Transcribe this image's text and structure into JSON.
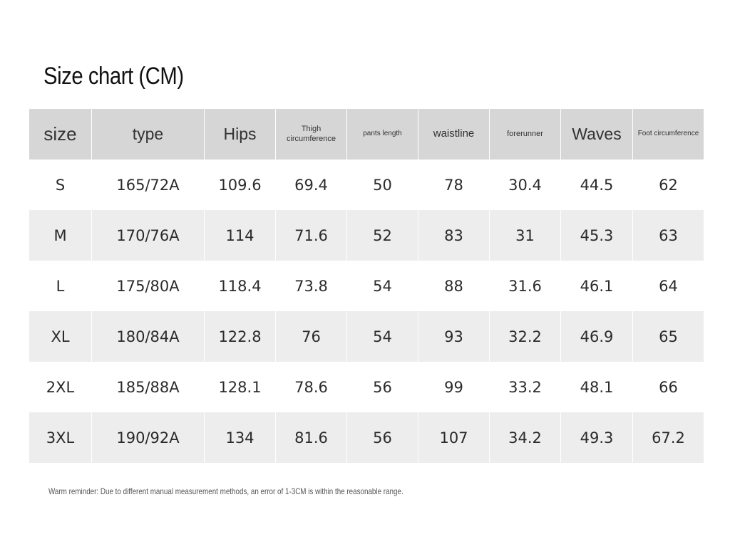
{
  "title": "Size chart (CM)",
  "table": {
    "headers": [
      "size",
      "type",
      "Hips",
      "Thigh circumference",
      "pants length",
      "waistline",
      "forerunner",
      "Waves",
      "Foot circumference"
    ],
    "rows": [
      [
        "S",
        "165/72A",
        "109.6",
        "69.4",
        "50",
        "78",
        "30.4",
        "44.5",
        "62"
      ],
      [
        "M",
        "170/76A",
        "114",
        "71.6",
        "52",
        "83",
        "31",
        "45.3",
        "63"
      ],
      [
        "L",
        "175/80A",
        "118.4",
        "73.8",
        "54",
        "88",
        "31.6",
        "46.1",
        "64"
      ],
      [
        "XL",
        "180/84A",
        "122.8",
        "76",
        "54",
        "93",
        "32.2",
        "46.9",
        "65"
      ],
      [
        "2XL",
        "185/88A",
        "128.1",
        "78.6",
        "56",
        "99",
        "33.2",
        "48.1",
        "66"
      ],
      [
        "3XL",
        "190/92A",
        "134",
        "81.6",
        "56",
        "107",
        "34.2",
        "49.3",
        "67.2"
      ]
    ]
  },
  "note": "Warm reminder: Due to different manual measurement methods, an error of 1-3CM is within the reasonable range.",
  "colors": {
    "header_bg": "#d6d6d6",
    "alt_row_bg": "#ededed",
    "text": "#2b2b2b"
  }
}
